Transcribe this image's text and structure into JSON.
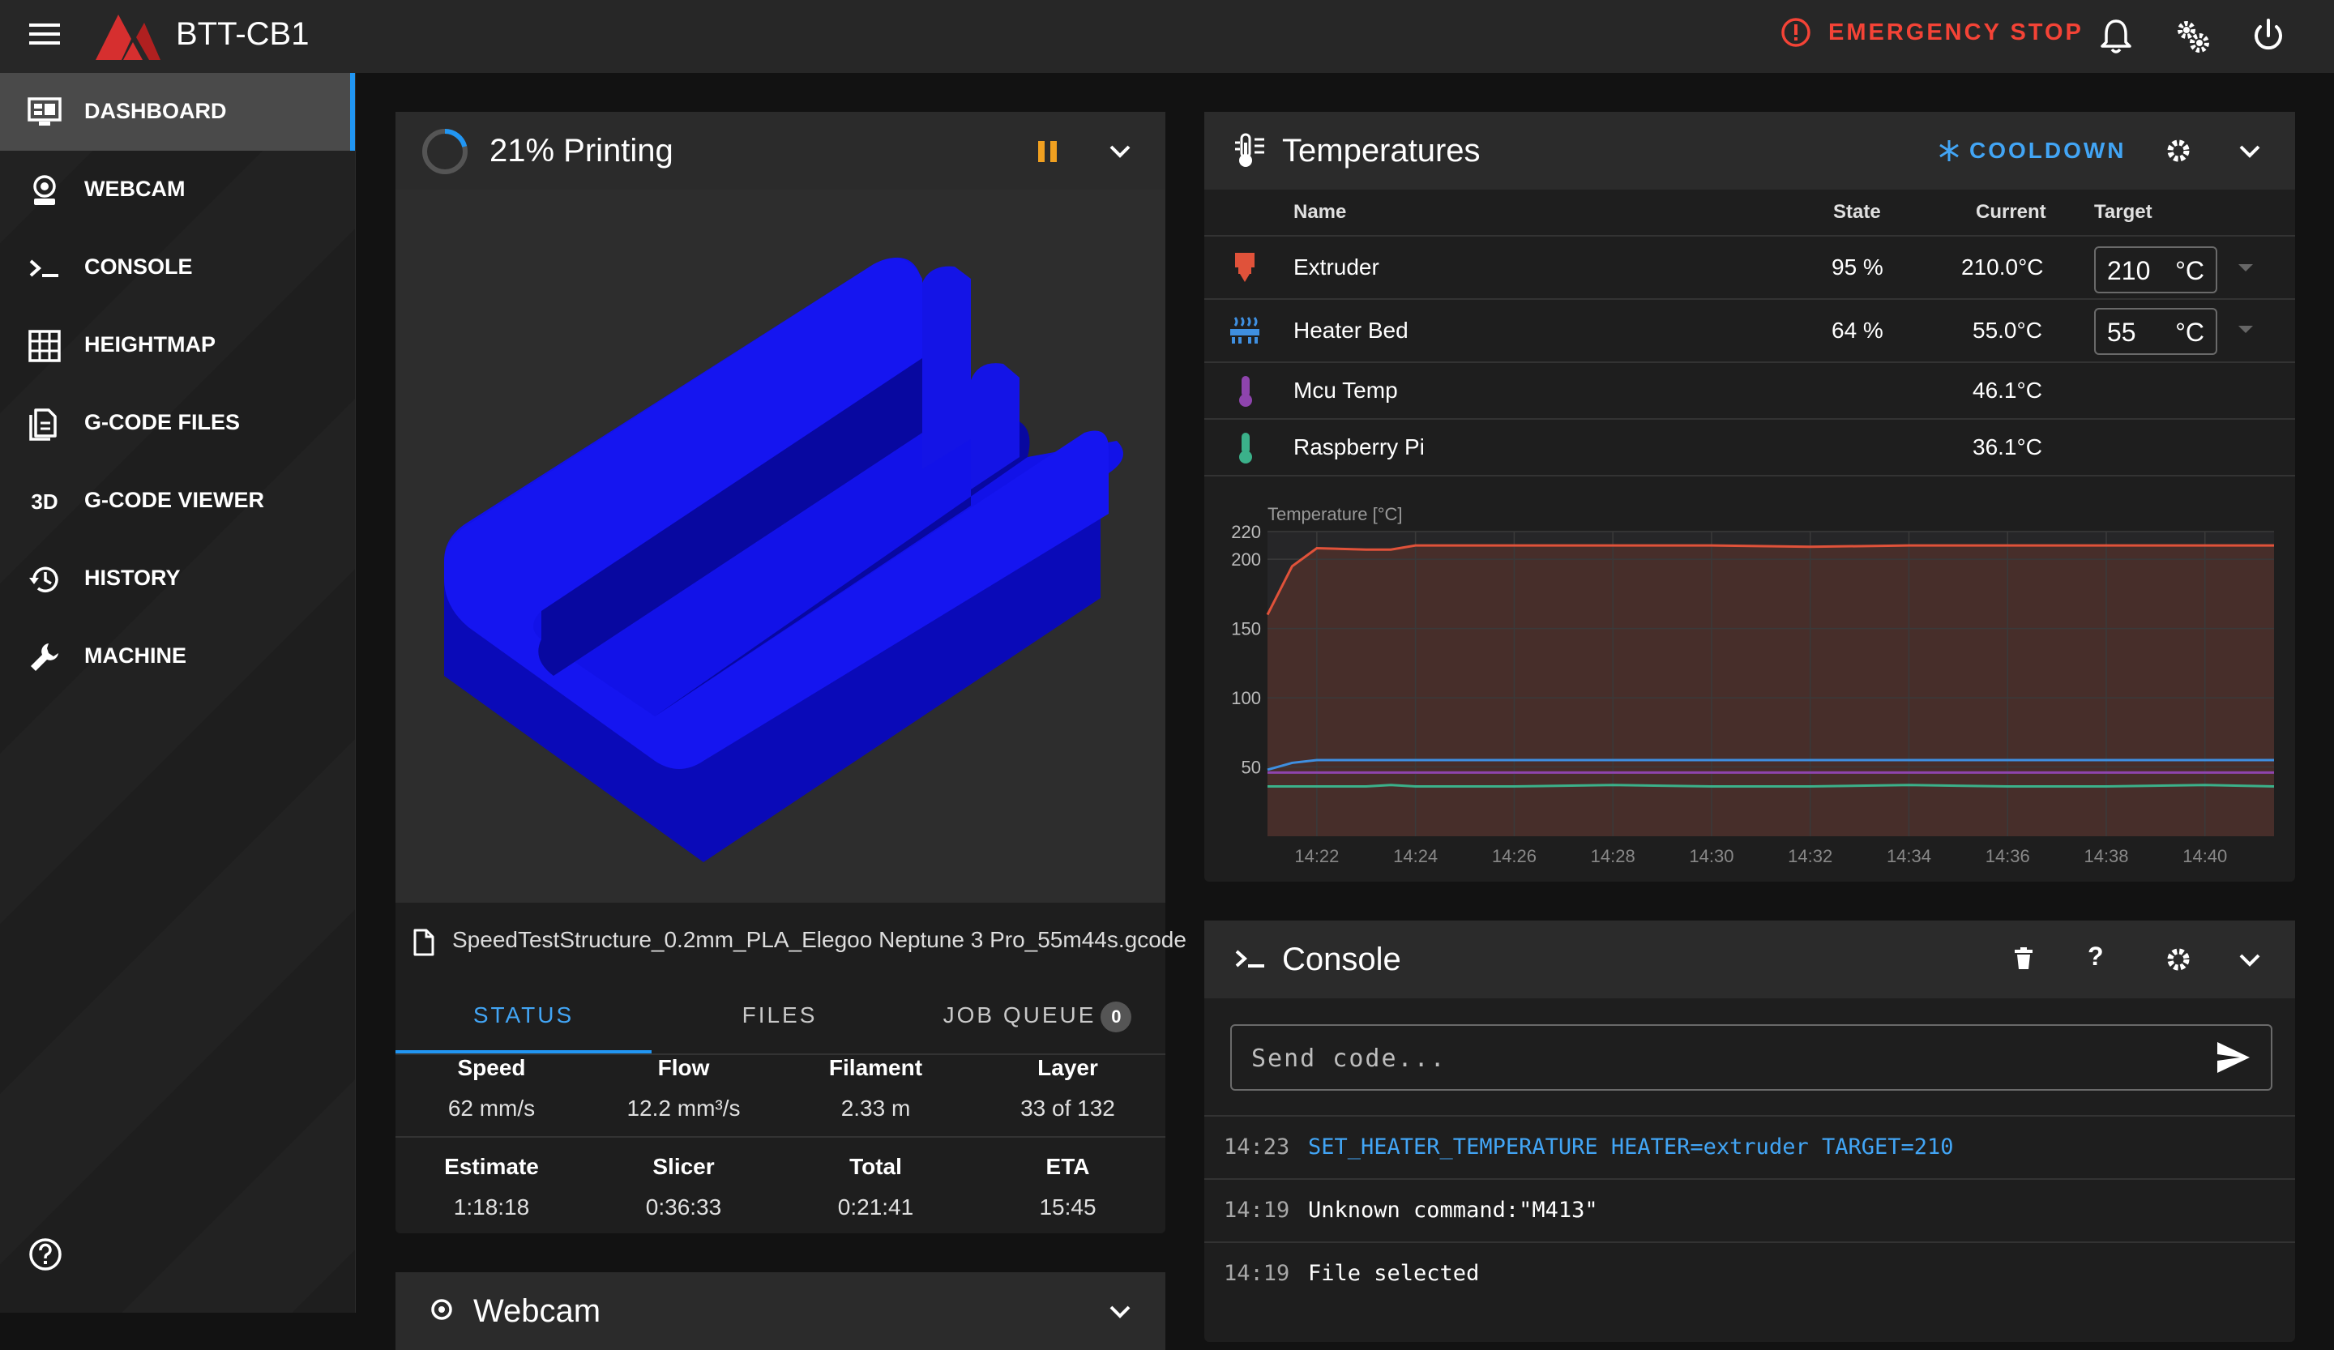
{
  "app": {
    "title": "BTT-CB1"
  },
  "topbar": {
    "emergency_stop": "EMERGENCY STOP"
  },
  "sidebar": {
    "items": [
      {
        "label": "DASHBOARD",
        "icon": "monitor-dashboard-icon",
        "active": true
      },
      {
        "label": "WEBCAM",
        "icon": "webcam-icon"
      },
      {
        "label": "CONSOLE",
        "icon": "console-icon"
      },
      {
        "label": "HEIGHTMAP",
        "icon": "grid-icon"
      },
      {
        "label": "G-CODE FILES",
        "icon": "file-document-icon"
      },
      {
        "label": "G-CODE VIEWER",
        "icon": "3d-icon"
      },
      {
        "label": "HISTORY",
        "icon": "history-icon"
      },
      {
        "label": "MACHINE",
        "icon": "wrench-icon"
      }
    ],
    "viewer_icon_text": "3D"
  },
  "print": {
    "title": "21% Printing",
    "progress": 0.21,
    "filename": "SpeedTestStructure_0.2mm_PLA_Elegoo Neptune 3 Pro_55m44s.gcode",
    "tabs": [
      {
        "label": "STATUS",
        "active": true
      },
      {
        "label": "FILES"
      },
      {
        "label": "JOB QUEUE",
        "badge": "0"
      }
    ],
    "stats": [
      {
        "label": "Speed",
        "value": "62 mm/s"
      },
      {
        "label": "Flow",
        "value": "12.2 mm³/s"
      },
      {
        "label": "Filament",
        "value": "2.33 m"
      },
      {
        "label": "Layer",
        "value": "33 of 132"
      },
      {
        "label": "Estimate",
        "value": "1:18:18"
      },
      {
        "label": "Slicer",
        "value": "0:36:33"
      },
      {
        "label": "Total",
        "value": "0:21:41"
      },
      {
        "label": "ETA",
        "value": "15:45"
      }
    ]
  },
  "webcam": {
    "title": "Webcam"
  },
  "temperatures": {
    "title": "Temperatures",
    "cooldown": "COOLDOWN",
    "headers": {
      "name": "Name",
      "state": "State",
      "current": "Current",
      "target": "Target"
    },
    "rows": [
      {
        "name": "Extruder",
        "state": "95 %",
        "current": "210.0°C",
        "target": "210",
        "unit": "°C",
        "icon": "extruder-icon",
        "color": "#e0523a"
      },
      {
        "name": "Heater Bed",
        "state": "64 %",
        "current": "55.0°C",
        "target": "55",
        "unit": "°C",
        "icon": "heater-bed-icon",
        "color": "#3f8fe0"
      },
      {
        "name": "Mcu Temp",
        "state": "",
        "current": "46.1°C",
        "icon": "thermometer-icon",
        "color": "#8e44ad"
      },
      {
        "name": "Raspberry Pi",
        "state": "",
        "current": "36.1°C",
        "icon": "thermometer-icon",
        "color": "#3bb18a"
      }
    ]
  },
  "chart_data": {
    "type": "line",
    "ylabel": "Temperature [°C]",
    "ylim": [
      0,
      220
    ],
    "yticks": [
      50,
      100,
      150,
      200,
      220
    ],
    "xticks": [
      "14:22",
      "14:24",
      "14:26",
      "14:28",
      "14:30",
      "14:32",
      "14:34",
      "14:36",
      "14:38",
      "14:40"
    ],
    "x": [
      "14:21",
      "14:21.5",
      "14:22",
      "14:23",
      "14:23.5",
      "14:24",
      "14:26",
      "14:28",
      "14:30",
      "14:32",
      "14:34",
      "14:36",
      "14:38",
      "14:40",
      "14:41.4"
    ],
    "series": [
      {
        "values": [
          160,
          195,
          208,
          207,
          207,
          210,
          210,
          210,
          210,
          209,
          210,
          210,
          210,
          210,
          210
        ],
        "color": "#e0523a"
      },
      {
        "values": [
          48,
          53,
          55,
          55,
          55,
          55,
          55,
          55,
          55,
          55,
          55,
          55,
          55,
          55,
          55
        ],
        "color": "#3f8fe0"
      },
      {
        "values": [
          46,
          46,
          46,
          46,
          46,
          46,
          46,
          46,
          46,
          46,
          46,
          46,
          46,
          46,
          46
        ],
        "color": "#8e44ad"
      },
      {
        "values": [
          36,
          36,
          36,
          36,
          37,
          36,
          36,
          37,
          36,
          36,
          37,
          36,
          36,
          37,
          36
        ],
        "color": "#3bb18a"
      }
    ],
    "grid": true
  },
  "console": {
    "title": "Console",
    "placeholder": "Send code...",
    "lines": [
      {
        "time": "14:23",
        "text": "SET_HEATER_TEMPERATURE HEATER=extruder TARGET=210",
        "highlight": true
      },
      {
        "time": "14:19",
        "text": "Unknown command:\"M413\""
      },
      {
        "time": "14:19",
        "text": "File selected"
      }
    ]
  },
  "colors": {
    "accent": "#2196f3",
    "danger": "#f44336",
    "model": "#1010e8",
    "pause": "#f0a020"
  }
}
